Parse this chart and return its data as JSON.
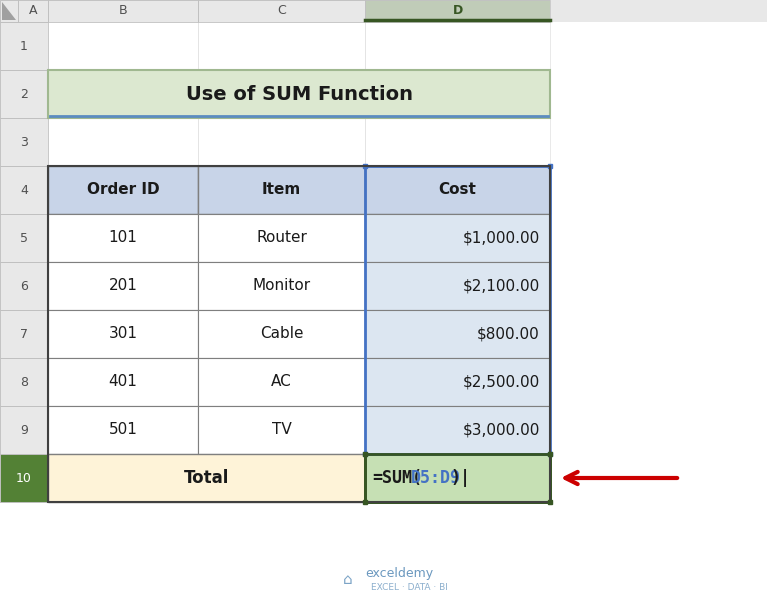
{
  "title": "Use of SUM Function",
  "title_bg": "#dce8d0",
  "title_border": "#a0b890",
  "header_labels": [
    "Order ID",
    "Item",
    "Cost"
  ],
  "header_bg": "#c8d4e8",
  "data_rows": [
    [
      "101",
      "Router",
      "$1,000.00"
    ],
    [
      "201",
      "Monitor",
      "$2,100.00"
    ],
    [
      "301",
      "Cable",
      "$800.00"
    ],
    [
      "401",
      "AC",
      "$2,500.00"
    ],
    [
      "501",
      "TV",
      "$3,000.00"
    ]
  ],
  "total_label": "Total",
  "total_formula": "=SUM(",
  "total_formula_ref": "D5:D9",
  "total_formula_end": ")|",
  "total_row_bg": "#fef3d8",
  "cost_col_bg": "#dce6f1",
  "formula_cell_bg": "#c6e0b4",
  "formula_border_color": "#375623",
  "selected_col_border": "#4472c4",
  "cell_border": "#7f7f7f",
  "bg_color": "#ffffff",
  "arrow_color": "#cc0000",
  "exceldemy_color": "#5b8db8",
  "col_header_active_bg": "#c0ccb8",
  "col_header_bg": "#e0e0e0",
  "row_header_bg": "#e0e0e0",
  "row10_header_bg": "#538135",
  "col_labels": [
    "A",
    "B",
    "C",
    "D"
  ],
  "row_labels": [
    "1",
    "2",
    "3",
    "4",
    "5",
    "6",
    "7",
    "8",
    "9",
    "10"
  ],
  "corner_color": "#4472c4",
  "formula_corner_color": "#375623"
}
